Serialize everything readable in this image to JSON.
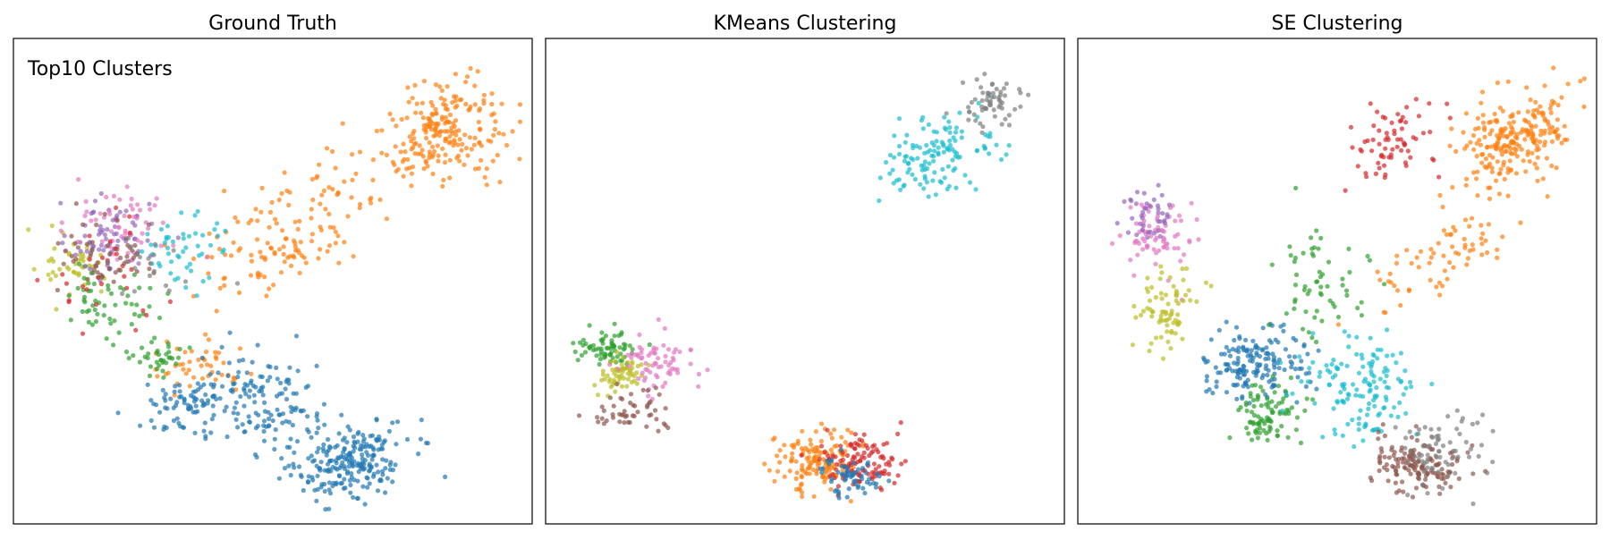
{
  "colors": {
    "c0": "#1f77b4",
    "c1": "#ff7f0e",
    "c2": "#2ca02c",
    "c3": "#d62728",
    "c4": "#9467bd",
    "c5": "#8c564b",
    "c6": "#e377c2",
    "c7": "#7f7f7f",
    "c8": "#bcbd22",
    "c9": "#17becf"
  },
  "chart_data": [
    {
      "type": "scatter",
      "title": "Ground Truth",
      "annotation": "Top10 Clusters",
      "xlim": [
        0,
        100
      ],
      "ylim": [
        0,
        100
      ],
      "grid": false,
      "clusters": [
        {
          "color": "c1",
          "n": 210,
          "cx": 84,
          "cy": 82,
          "sx": 6,
          "sy": 5,
          "rot": 35
        },
        {
          "color": "c1",
          "n": 150,
          "cx": 55,
          "cy": 62,
          "sx": 12,
          "sy": 5,
          "rot": 40
        },
        {
          "color": "c1",
          "n": 45,
          "cx": 35,
          "cy": 31,
          "sx": 5,
          "sy": 3,
          "rot": 0
        },
        {
          "color": "c0",
          "n": 230,
          "cx": 65,
          "cy": 12,
          "sx": 6,
          "sy": 4,
          "rot": 15
        },
        {
          "color": "c0",
          "n": 140,
          "cx": 48,
          "cy": 24,
          "sx": 7,
          "sy": 5,
          "rot": -25
        },
        {
          "color": "c0",
          "n": 70,
          "cx": 32,
          "cy": 23,
          "sx": 4,
          "sy": 3,
          "rot": 0
        },
        {
          "color": "c8",
          "n": 45,
          "cx": 11,
          "cy": 53,
          "sx": 3,
          "sy": 3,
          "rot": 0
        },
        {
          "color": "c4",
          "n": 70,
          "cx": 18,
          "cy": 59,
          "sx": 5,
          "sy": 4,
          "rot": 0
        },
        {
          "color": "c6",
          "n": 55,
          "cx": 20,
          "cy": 62,
          "sx": 5,
          "sy": 4,
          "rot": 0
        },
        {
          "color": "c5",
          "n": 55,
          "cx": 17,
          "cy": 56,
          "sx": 5,
          "sy": 4,
          "rot": 0
        },
        {
          "color": "c2",
          "n": 55,
          "cx": 17,
          "cy": 46,
          "sx": 5,
          "sy": 4,
          "rot": 0
        },
        {
          "color": "c2",
          "n": 35,
          "cx": 28,
          "cy": 34,
          "sx": 3,
          "sy": 2,
          "rot": 0
        },
        {
          "color": "c3",
          "n": 30,
          "cx": 17,
          "cy": 52,
          "sx": 6,
          "sy": 6,
          "rot": 0
        },
        {
          "color": "c9",
          "n": 50,
          "cx": 32,
          "cy": 56,
          "sx": 5,
          "sy": 4,
          "rot": 0
        },
        {
          "color": "c7",
          "n": 20,
          "cx": 25,
          "cy": 55,
          "sx": 5,
          "sy": 4,
          "rot": 0
        }
      ]
    },
    {
      "type": "scatter",
      "title": "KMeans Clustering",
      "annotation": "",
      "xlim": [
        0,
        100
      ],
      "ylim": [
        0,
        100
      ],
      "grid": false,
      "clusters": [
        {
          "color": "c9",
          "n": 130,
          "cx": 76,
          "cy": 77,
          "sx": 6,
          "sy": 4,
          "rot": 35
        },
        {
          "color": "c7",
          "n": 60,
          "cx": 87,
          "cy": 88,
          "sx": 3,
          "sy": 2.5,
          "rot": 20
        },
        {
          "color": "c2",
          "n": 70,
          "cx": 11,
          "cy": 36,
          "sx": 3,
          "sy": 2,
          "rot": 0
        },
        {
          "color": "c8",
          "n": 60,
          "cx": 14,
          "cy": 30,
          "sx": 3,
          "sy": 2,
          "rot": 0
        },
        {
          "color": "c6",
          "n": 70,
          "cx": 21,
          "cy": 33,
          "sx": 3.5,
          "sy": 3,
          "rot": 0
        },
        {
          "color": "c5",
          "n": 50,
          "cx": 15,
          "cy": 22,
          "sx": 3.5,
          "sy": 2.5,
          "rot": 0
        },
        {
          "color": "c1",
          "n": 140,
          "cx": 52,
          "cy": 12,
          "sx": 4,
          "sy": 3,
          "rot": 0
        },
        {
          "color": "c3",
          "n": 110,
          "cx": 61,
          "cy": 12,
          "sx": 4,
          "sy": 3,
          "rot": 0
        },
        {
          "color": "c0",
          "n": 60,
          "cx": 59,
          "cy": 9,
          "sx": 3,
          "sy": 2,
          "rot": 0
        }
      ]
    },
    {
      "type": "scatter",
      "title": "SE Clustering",
      "annotation": "",
      "xlim": [
        0,
        100
      ],
      "ylim": [
        0,
        100
      ],
      "grid": false,
      "clusters": [
        {
          "color": "c1",
          "n": 230,
          "cx": 85,
          "cy": 80,
          "sx": 6,
          "sy": 4.5,
          "rot": 35
        },
        {
          "color": "c1",
          "n": 70,
          "cx": 70,
          "cy": 55,
          "sx": 8,
          "sy": 3,
          "rot": 35
        },
        {
          "color": "c3",
          "n": 70,
          "cx": 61,
          "cy": 80,
          "sx": 5,
          "sy": 3,
          "rot": 40
        },
        {
          "color": "c6",
          "n": 75,
          "cx": 14,
          "cy": 60,
          "sx": 3,
          "sy": 4,
          "rot": 0
        },
        {
          "color": "c4",
          "n": 40,
          "cx": 14,
          "cy": 64,
          "sx": 3,
          "sy": 3,
          "rot": 0
        },
        {
          "color": "c8",
          "n": 75,
          "cx": 16,
          "cy": 44,
          "sx": 3,
          "sy": 4.5,
          "rot": 0
        },
        {
          "color": "c0",
          "n": 170,
          "cx": 34,
          "cy": 32,
          "sx": 5,
          "sy": 3.5,
          "rot": 0
        },
        {
          "color": "c2",
          "n": 90,
          "cx": 36,
          "cy": 22,
          "sx": 3.5,
          "sy": 3.5,
          "rot": 0
        },
        {
          "color": "c2",
          "n": 60,
          "cx": 46,
          "cy": 50,
          "sx": 5,
          "sy": 6,
          "rot": 0
        },
        {
          "color": "c9",
          "n": 140,
          "cx": 54,
          "cy": 28,
          "sx": 6,
          "sy": 6,
          "rot": -20
        },
        {
          "color": "c5",
          "n": 140,
          "cx": 65,
          "cy": 11,
          "sx": 4.5,
          "sy": 3,
          "rot": -10
        },
        {
          "color": "c7",
          "n": 70,
          "cx": 70,
          "cy": 14,
          "sx": 4,
          "sy": 4,
          "rot": 0
        }
      ]
    }
  ]
}
